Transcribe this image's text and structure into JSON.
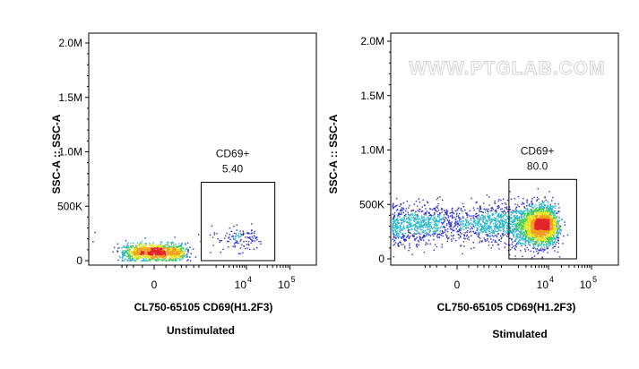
{
  "watermark": "WWW.PTGLAB.COM",
  "chart_data": [
    {
      "type": "scatter",
      "panel": "left",
      "title": "",
      "xlabel": "CL750-65105 CD69(H1.2F3)",
      "ylabel": "SSC-A :: SSC-A",
      "caption": "Unstimulated",
      "x_scale": "biexponential",
      "x_ticks": [
        {
          "value": 0,
          "base": "0",
          "exp": ""
        },
        {
          "value": 10000,
          "base": "10",
          "exp": "4"
        },
        {
          "value": 100000,
          "base": "10",
          "exp": "5"
        }
      ],
      "y_ticks": [
        "0",
        "500K",
        "1.0M",
        "1.5M",
        "2.0M"
      ],
      "ylim": [
        0,
        2000000
      ],
      "gate": {
        "label": "CD69+",
        "percent": "5.40",
        "x_range": [
          900,
          45000
        ],
        "y_range": [
          0,
          720000
        ]
      },
      "populations": [
        {
          "x_center": 0,
          "x_spread": 180,
          "y_center": 80000,
          "y_spread": 40000,
          "count": 1100
        },
        {
          "x_center": 7000,
          "x_spread": 5000,
          "y_center": 200000,
          "y_spread": 55000,
          "count": 130
        }
      ]
    },
    {
      "type": "scatter",
      "panel": "right",
      "title": "",
      "xlabel": "CL750-65105 CD69(H1.2F3)",
      "ylabel": "SSC-A :: SSC-A",
      "caption": "Stimulated",
      "x_scale": "biexponential",
      "x_ticks": [
        {
          "value": 0,
          "base": "0",
          "exp": ""
        },
        {
          "value": 10000,
          "base": "10",
          "exp": "4"
        },
        {
          "value": 100000,
          "base": "10",
          "exp": "5"
        }
      ],
      "y_ticks": [
        "0",
        "500K",
        "1.0M",
        "1.5M",
        "2.0M"
      ],
      "ylim": [
        0,
        2000000
      ],
      "gate": {
        "label": "CD69+",
        "percent": "80.0",
        "x_range": [
          1200,
          45000
        ],
        "y_range": [
          0,
          730000
        ]
      },
      "populations": [
        {
          "x_center": 0,
          "x_spread": 400,
          "y_center": 330000,
          "y_spread": 90000,
          "count": 700
        },
        {
          "x_center": 3500,
          "x_spread": 5500,
          "y_center": 310000,
          "y_spread": 95000,
          "count": 3400
        }
      ]
    }
  ]
}
